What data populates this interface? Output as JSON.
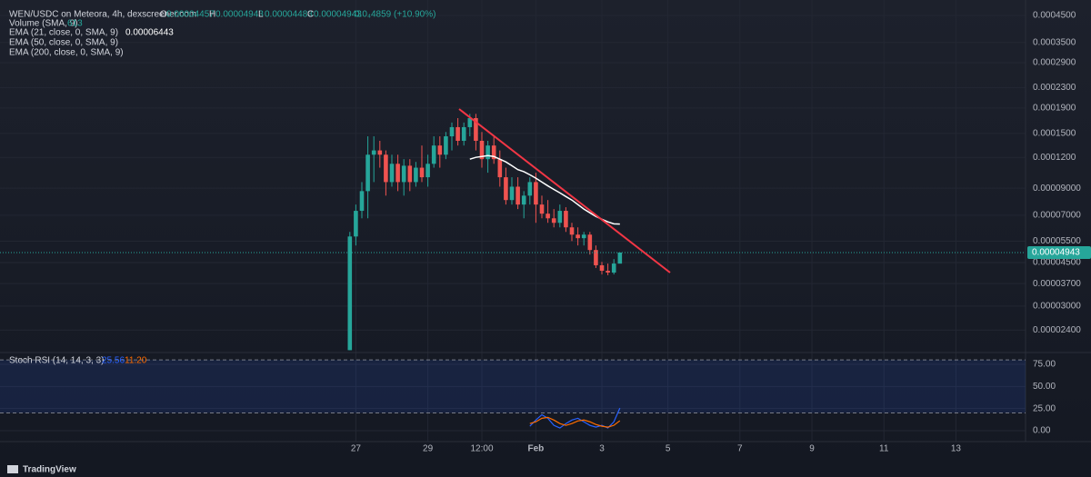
{
  "chart_data": [
    {
      "type": "candlestick",
      "title": "WEN/USDC on Meteora, 4h, dexscreener.com",
      "ohlc_letters": [
        "O",
        "H",
        "L",
        "C"
      ],
      "change_label": "0.0₄4859 (+10.90%)",
      "volume_label": "Volume (SMA, 9)",
      "volume_last": 613,
      "other_indicators": [
        "EMA (50, close, 0, SMA, 9)",
        "EMA (200, close, 0, SMA, 9)"
      ],
      "watermark": "TradingView",
      "up_color": "#26a69a",
      "down_color": "#ef5350",
      "log_scale": true,
      "grid": true,
      "open": [
        1.99e-05,
        5.74e-05,
        7.29e-05,
        8.76e-05,
        0.000123,
        0.000128,
        0.000123,
        9.53e-05,
        0.000113,
        9.53e-05,
        0.000111,
        9.53e-05,
        0.000109,
        9.97e-05,
        0.000113,
        0.000134,
        0.000123,
        0.000146,
        0.000159,
        0.00014,
        0.000159,
        0.000173,
        0.00014,
        0.000118,
        0.000134,
        0.000118,
        9.97e-05,
        8.06e-05,
        9.13e-05,
        7.73e-05,
        8.4e-05,
        9.53e-05,
        7.73e-05,
        7.1e-05,
        6.8e-05,
        6.52e-05,
        7.29e-05,
        6.25e-05,
        5.84e-05,
        5.65e-05,
        5.84e-05,
        5.06e-05,
        4.39e-05,
        4.17e-05,
        4.1e-05,
        4.457e-05
      ],
      "high": [
        5.99e-05,
        7.73e-05,
        9.53e-05,
        0.000146,
        0.000146,
        0.00014,
        0.000128,
        0.000123,
        0.000123,
        0.000118,
        0.000118,
        0.000115,
        0.000134,
        0.000123,
        0.000146,
        0.000146,
        0.000152,
        0.000166,
        0.000173,
        0.000166,
        0.00018,
        0.00018,
        0.000152,
        0.00014,
        0.000146,
        0.000128,
        0.000109,
        9.97e-05,
        9.97e-05,
        8.76e-05,
        9.97e-05,
        0.000104,
        8.4e-05,
        8.06e-05,
        7.41e-05,
        7.73e-05,
        7.54e-05,
        6.52e-05,
        6.25e-05,
        5.99e-05,
        5.99e-05,
        5.28e-05,
        4.53e-05,
        4.46e-05,
        4.65e-05,
        4.943e-05
      ],
      "low": [
        1.99e-05,
        5.28e-05,
        6.8e-05,
        6.8e-05,
        9.53e-05,
        0.000109,
        8.4e-05,
        9.13e-05,
        8.76e-05,
        8.4e-05,
        8.76e-05,
        9.13e-05,
        9.53e-05,
        9.13e-05,
        0.000109,
        0.000109,
        0.000118,
        0.000128,
        0.000134,
        0.000134,
        0.000146,
        0.000128,
        0.000109,
        0.000104,
        0.000113,
        9.13e-05,
        7.73e-05,
        7.73e-05,
        7.41e-05,
        6.8e-05,
        7.73e-05,
        6.52e-05,
        6.8e-05,
        6.52e-05,
        6.25e-05,
        6.25e-05,
        5.99e-05,
        5.5e-05,
        5.28e-05,
        5.28e-05,
        4.85e-05,
        4.28e-05,
        4.03e-05,
        4e-05,
        4.03e-05,
        4.483e-05
      ],
      "close": [
        5.74e-05,
        7.29e-05,
        8.76e-05,
        0.000123,
        0.000128,
        0.000123,
        9.53e-05,
        0.000113,
        9.53e-05,
        0.000111,
        9.53e-05,
        0.000109,
        9.97e-05,
        0.000113,
        0.000134,
        0.000123,
        0.000146,
        0.000159,
        0.00014,
        0.000159,
        0.000173,
        0.00014,
        0.000118,
        0.000134,
        0.000118,
        9.97e-05,
        8.06e-05,
        9.13e-05,
        7.73e-05,
        8.4e-05,
        9.53e-05,
        7.73e-05,
        7.1e-05,
        6.8e-05,
        6.52e-05,
        7.29e-05,
        6.25e-05,
        5.84e-05,
        5.65e-05,
        5.84e-05,
        5.06e-05,
        4.39e-05,
        4.17e-05,
        4.1e-05,
        4.46e-05,
        4.943e-05
      ],
      "series": [
        {
          "name": "EMA (21, close, 0, SMA, 9)",
          "color": "#ffffff",
          "values": [
            null,
            null,
            null,
            null,
            null,
            null,
            null,
            null,
            null,
            null,
            null,
            null,
            null,
            null,
            null,
            null,
            null,
            null,
            null,
            null,
            0.000118,
            0.00012,
            0.000121,
            0.000122,
            0.000121,
            0.000118,
            0.000115,
            0.000111,
            0.000107,
            0.000105,
            0.000102,
            9.88e-05,
            9.53e-05,
            9.2e-05,
            8.9e-05,
            8.62e-05,
            8.33e-05,
            8.06e-05,
            7.73e-05,
            7.41e-05,
            7.16e-05,
            6.92e-05,
            6.74e-05,
            6.58e-05,
            6.46e-05,
            6.443e-05
          ]
        }
      ],
      "ylim": [
        1.98e-05,
        0.00052
      ],
      "yticks": [
        {
          "value": 0.00045,
          "label": "0.0004500"
        },
        {
          "value": 0.00035,
          "label": "0.0003500"
        },
        {
          "value": 0.00029,
          "label": "0.0002900"
        },
        {
          "value": 0.00023,
          "label": "0.0002300"
        },
        {
          "value": 0.00019,
          "label": "0.0001900"
        },
        {
          "value": 0.00015,
          "label": "0.0001500"
        },
        {
          "value": 0.00012,
          "label": "0.0001200"
        },
        {
          "value": 9e-05,
          "label": "0.00009000"
        },
        {
          "value": 7e-05,
          "label": "0.00007000"
        },
        {
          "value": 5.5e-05,
          "label": "0.00005500"
        },
        {
          "value": 4.5e-05,
          "label": "0.00004500"
        },
        {
          "value": 3.7e-05,
          "label": "0.00003700"
        },
        {
          "value": 3e-05,
          "label": "0.00003000"
        },
        {
          "value": 2.4e-05,
          "label": "0.00002400"
        }
      ],
      "xlim": [
        -58.3,
        112.6
      ],
      "xticks": [
        {
          "value": 1,
          "label": "27"
        },
        {
          "value": 13,
          "label": "29"
        },
        {
          "value": 22,
          "label": "12:00"
        },
        {
          "value": 31,
          "label": "Feb"
        },
        {
          "value": 42,
          "label": "3"
        },
        {
          "value": 53,
          "label": "5"
        },
        {
          "value": 65,
          "label": "7"
        },
        {
          "value": 77,
          "label": "9"
        },
        {
          "value": 89,
          "label": "11"
        },
        {
          "value": 101,
          "label": "13"
        }
      ]
    },
    {
      "type": "line",
      "title": "Stoch RSI (14, 14, 3, 3)",
      "grid": true,
      "bands": [
        20,
        80
      ],
      "band_color": "#2962ff",
      "ylim": [
        -10.3,
        86.3
      ],
      "yticks": [
        {
          "value": 75,
          "label": "75.00"
        },
        {
          "value": 50,
          "label": "50.00"
        },
        {
          "value": 25,
          "label": "25.00"
        },
        {
          "value": 0,
          "label": "0.00"
        }
      ],
      "series": [
        {
          "color": "#2962ff",
          "last_label": "25.56",
          "values": [
            null,
            null,
            null,
            null,
            null,
            null,
            null,
            null,
            null,
            null,
            null,
            null,
            null,
            null,
            null,
            null,
            null,
            null,
            null,
            null,
            null,
            null,
            null,
            null,
            null,
            null,
            null,
            null,
            null,
            null,
            5,
            12,
            18,
            14,
            6,
            3,
            8,
            12,
            14,
            10,
            6,
            4,
            6,
            3,
            10,
            25.56
          ]
        },
        {
          "color": "#ff6d00",
          "last_label": "11.20",
          "values": [
            null,
            null,
            null,
            null,
            null,
            null,
            null,
            null,
            null,
            null,
            null,
            null,
            null,
            null,
            null,
            null,
            null,
            null,
            null,
            null,
            null,
            null,
            null,
            null,
            null,
            null,
            null,
            null,
            null,
            null,
            8,
            10,
            14,
            15,
            12,
            8,
            6,
            8,
            11,
            12,
            10,
            7,
            5,
            4,
            6,
            11.2
          ]
        }
      ]
    }
  ]
}
